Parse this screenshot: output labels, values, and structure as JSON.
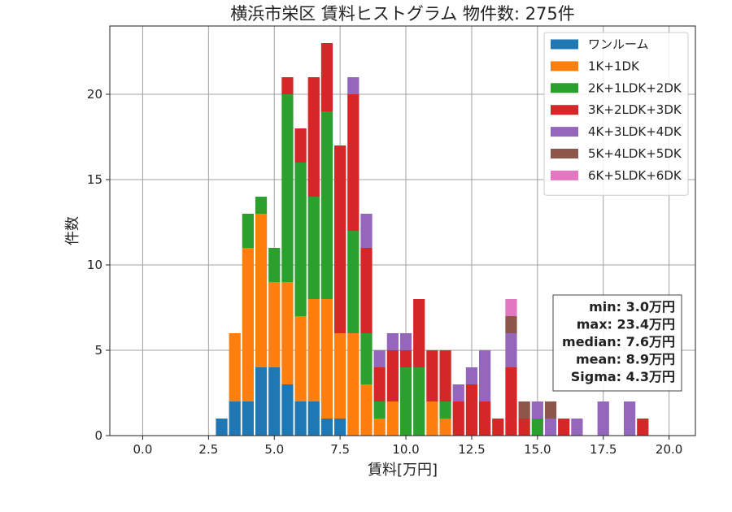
{
  "chart_data": {
    "type": "bar",
    "stacked": true,
    "title": "横浜市栄区 賃料ヒストグラム 物件数: 275件",
    "xlabel": "賃料[万円]",
    "ylabel": "件数",
    "xlim": [
      -1.25,
      21.0
    ],
    "ylim": [
      0,
      24
    ],
    "bin_width": 0.5,
    "xticks": [
      0.0,
      2.5,
      5.0,
      7.5,
      10.0,
      12.5,
      15.0,
      17.5,
      20.0
    ],
    "xtick_labels": [
      "0.0",
      "2.5",
      "5.0",
      "7.5",
      "10.0",
      "12.5",
      "15.0",
      "17.5",
      "20.0"
    ],
    "yticks": [
      0,
      5,
      10,
      15,
      20
    ],
    "ytick_labels": [
      "0",
      "5",
      "10",
      "15",
      "20"
    ],
    "grid": true,
    "legend_position": "top-right",
    "stats_box": {
      "position": "right",
      "lines": [
        "min: 3.0万円",
        "max: 23.4万円",
        "median: 7.6万円",
        "mean: 8.9万円",
        "Sigma: 4.3万円"
      ]
    },
    "x": [
      3.0,
      3.5,
      4.0,
      4.5,
      5.0,
      5.5,
      6.0,
      6.5,
      7.0,
      7.5,
      8.0,
      8.5,
      9.0,
      9.5,
      10.0,
      10.5,
      11.0,
      11.5,
      12.0,
      12.5,
      13.0,
      13.5,
      14.0,
      14.5,
      15.0,
      15.5,
      16.0,
      16.5,
      17.0,
      17.5,
      18.0,
      18.5,
      19.0,
      19.5
    ],
    "series": [
      {
        "name": "ワンルーム",
        "color": "#1f77b4",
        "values": [
          1,
          2,
          2,
          4,
          4,
          3,
          2,
          2,
          1,
          1,
          0,
          0,
          0,
          0,
          0,
          0,
          0,
          0,
          0,
          0,
          0,
          0,
          0,
          0,
          0,
          0,
          0,
          0,
          0,
          0,
          0,
          0,
          0,
          0
        ]
      },
      {
        "name": "1K+1DK",
        "color": "#ff7f0e",
        "values": [
          0,
          4,
          9,
          9,
          5,
          6,
          5,
          6,
          7,
          5,
          6,
          3,
          1,
          2,
          0,
          0,
          2,
          1,
          0,
          0,
          0,
          0,
          0,
          0,
          0,
          0,
          0,
          0,
          0,
          0,
          0,
          0,
          0,
          0
        ]
      },
      {
        "name": "2K+1LDK+2DK",
        "color": "#2ca02c",
        "values": [
          0,
          0,
          2,
          1,
          2,
          11,
          9,
          6,
          11,
          0,
          6,
          3,
          1,
          0,
          4,
          4,
          0,
          1,
          0,
          0,
          0,
          0,
          0,
          0,
          1,
          0,
          0,
          0,
          0,
          0,
          0,
          0,
          0,
          0
        ]
      },
      {
        "name": "3K+2LDK+3DK",
        "color": "#d62728",
        "values": [
          0,
          0,
          0,
          0,
          0,
          1,
          2,
          7,
          4,
          11,
          8,
          5,
          2,
          3,
          1,
          4,
          3,
          3,
          2,
          3,
          2,
          1,
          4,
          1,
          0,
          0,
          1,
          0,
          0,
          0,
          0,
          0,
          1,
          0
        ]
      },
      {
        "name": "4K+3LDK+4DK",
        "color": "#9467bd",
        "values": [
          0,
          0,
          0,
          0,
          0,
          0,
          0,
          0,
          0,
          0,
          1,
          2,
          1,
          1,
          1,
          0,
          0,
          0,
          1,
          1,
          3,
          0,
          2,
          0,
          1,
          1,
          0,
          1,
          0,
          2,
          0,
          2,
          0,
          0
        ]
      },
      {
        "name": "5K+4LDK+5DK",
        "color": "#8c564b",
        "values": [
          0,
          0,
          0,
          0,
          0,
          0,
          0,
          0,
          0,
          0,
          0,
          0,
          0,
          0,
          0,
          0,
          0,
          0,
          0,
          0,
          0,
          0,
          1,
          1,
          0,
          1,
          0,
          0,
          0,
          0,
          0,
          0,
          0,
          0
        ]
      },
      {
        "name": "6K+5LDK+6DK",
        "color": "#e377c2",
        "values": [
          0,
          0,
          0,
          0,
          0,
          0,
          0,
          0,
          0,
          0,
          0,
          0,
          0,
          0,
          0,
          0,
          0,
          0,
          0,
          0,
          0,
          0,
          1,
          0,
          0,
          0,
          0,
          0,
          0,
          0,
          0,
          0,
          0,
          0
        ]
      }
    ]
  }
}
